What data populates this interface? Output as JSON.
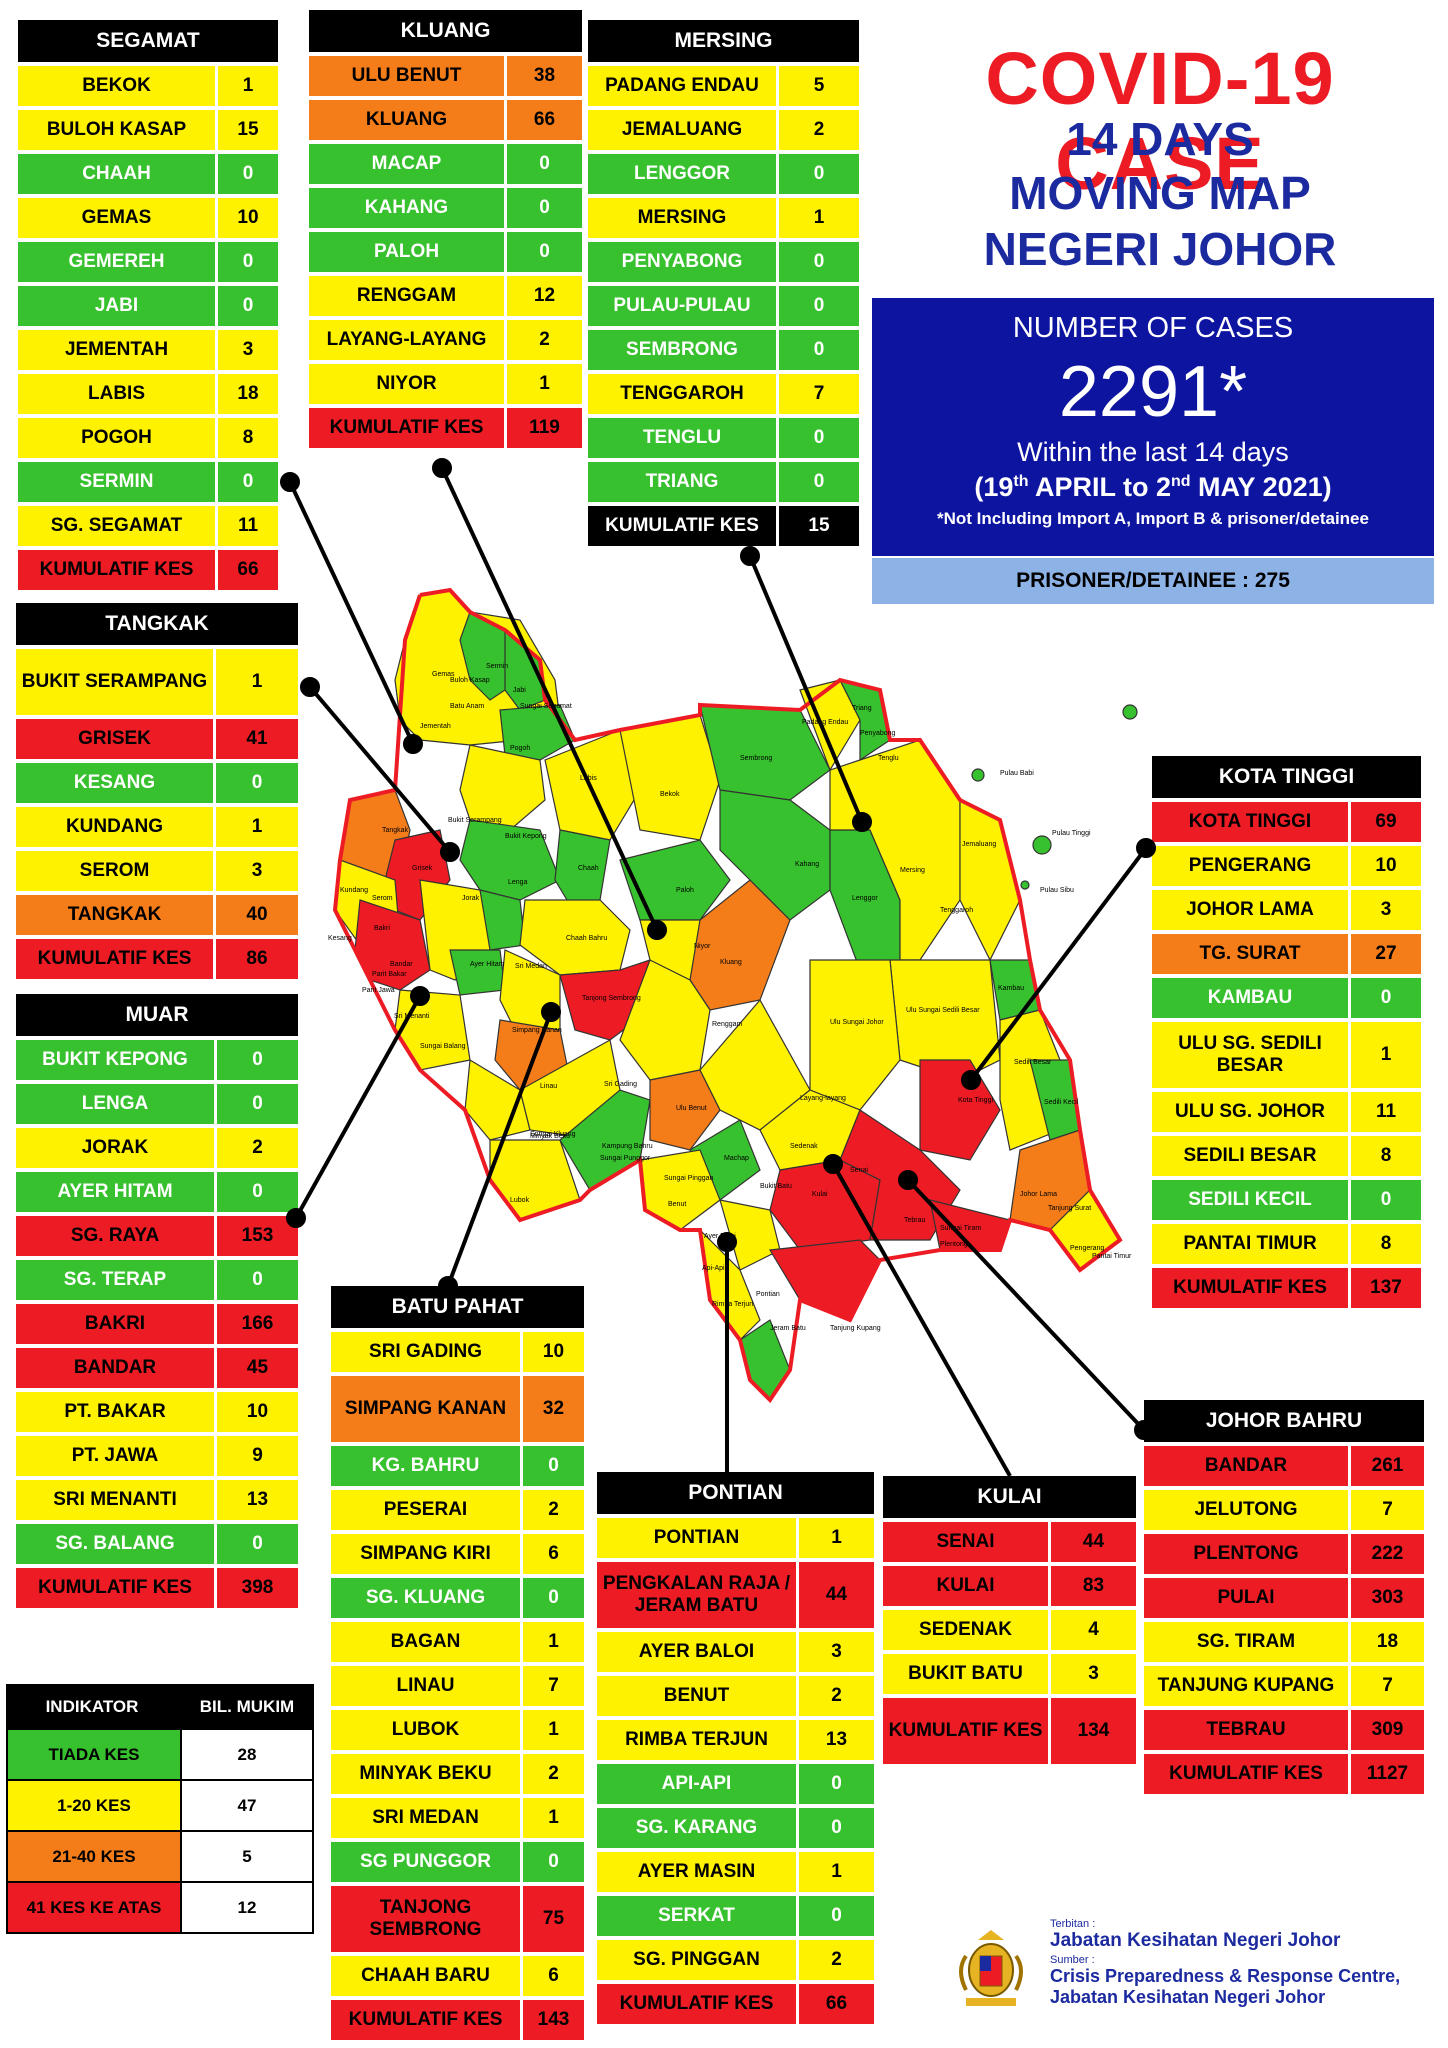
{
  "title": {
    "line1": "COVID-19 CASE",
    "line2": "14 DAYS",
    "line3": "MOVING MAP",
    "line4": "NEGERI JOHOR"
  },
  "summary": {
    "label": "NUMBER OF CASES",
    "total": "2291*",
    "period_line1": "Within the last 14 days",
    "period_open": "(19",
    "sup1": "th",
    "period_mid": " APRIL to 2",
    "sup2": "nd",
    "period_close": " MAY 2021)",
    "note": "*Not Including Import A, Import B & prisoner/detainee",
    "prisoner": "PRISONER/DETAINEE : 275"
  },
  "colors": {
    "green": "#38c12e",
    "yellow": "#fff200",
    "orange": "#f47d1a",
    "red": "#ed1c24"
  },
  "districts": {
    "segamat": {
      "name": "SEGAMAT",
      "rows": [
        {
          "n": "BEKOK",
          "v": "1",
          "c": "y"
        },
        {
          "n": "BULOH KASAP",
          "v": "15",
          "c": "y"
        },
        {
          "n": "CHAAH",
          "v": "0",
          "c": "g"
        },
        {
          "n": "GEMAS",
          "v": "10",
          "c": "y"
        },
        {
          "n": "GEMEREH",
          "v": "0",
          "c": "g"
        },
        {
          "n": "JABI",
          "v": "0",
          "c": "g"
        },
        {
          "n": "JEMENTAH",
          "v": "3",
          "c": "y"
        },
        {
          "n": "LABIS",
          "v": "18",
          "c": "y"
        },
        {
          "n": "POGOH",
          "v": "8",
          "c": "y"
        },
        {
          "n": "SERMIN",
          "v": "0",
          "c": "g"
        },
        {
          "n": "SG. SEGAMAT",
          "v": "11",
          "c": "y"
        },
        {
          "n": "KUMULATIF KES",
          "v": "66",
          "c": "r"
        }
      ]
    },
    "kluang": {
      "name": "KLUANG",
      "rows": [
        {
          "n": "ULU BENUT",
          "v": "38",
          "c": "o"
        },
        {
          "n": "KLUANG",
          "v": "66",
          "c": "o"
        },
        {
          "n": "MACAP",
          "v": "0",
          "c": "g"
        },
        {
          "n": "KAHANG",
          "v": "0",
          "c": "g"
        },
        {
          "n": "PALOH",
          "v": "0",
          "c": "g"
        },
        {
          "n": "RENGGAM",
          "v": "12",
          "c": "y"
        },
        {
          "n": "LAYANG-LAYANG",
          "v": "2",
          "c": "y"
        },
        {
          "n": "NIYOR",
          "v": "1",
          "c": "y"
        },
        {
          "n": "KUMULATIF KES",
          "v": "119",
          "c": "r"
        }
      ]
    },
    "mersing": {
      "name": "MERSING",
      "rows": [
        {
          "n": "PADANG ENDAU",
          "v": "5",
          "c": "y"
        },
        {
          "n": "JEMALUANG",
          "v": "2",
          "c": "y"
        },
        {
          "n": "LENGGOR",
          "v": "0",
          "c": "g"
        },
        {
          "n": "MERSING",
          "v": "1",
          "c": "y"
        },
        {
          "n": "PENYABONG",
          "v": "0",
          "c": "g"
        },
        {
          "n": "PULAU-PULAU",
          "v": "0",
          "c": "g"
        },
        {
          "n": "SEMBRONG",
          "v": "0",
          "c": "g"
        },
        {
          "n": "TENGGAROH",
          "v": "7",
          "c": "y"
        },
        {
          "n": "TENGLU",
          "v": "0",
          "c": "g"
        },
        {
          "n": "TRIANG",
          "v": "0",
          "c": "g"
        },
        {
          "n": "KUMULATIF KES",
          "v": "15",
          "c": "k"
        }
      ]
    },
    "tangkak": {
      "name": "TANGKAK",
      "rows": [
        {
          "n": "BUKIT SERAMPANG",
          "v": "1",
          "c": "y",
          "h": 2
        },
        {
          "n": "GRISEK",
          "v": "41",
          "c": "r"
        },
        {
          "n": "KESANG",
          "v": "0",
          "c": "g"
        },
        {
          "n": "KUNDANG",
          "v": "1",
          "c": "y"
        },
        {
          "n": "SEROM",
          "v": "3",
          "c": "y"
        },
        {
          "n": "TANGKAK",
          "v": "40",
          "c": "o"
        },
        {
          "n": "KUMULATIF KES",
          "v": "86",
          "c": "r"
        }
      ]
    },
    "muar": {
      "name": "MUAR",
      "rows": [
        {
          "n": "BUKIT KEPONG",
          "v": "0",
          "c": "g"
        },
        {
          "n": "LENGA",
          "v": "0",
          "c": "g"
        },
        {
          "n": "JORAK",
          "v": "2",
          "c": "y"
        },
        {
          "n": "AYER HITAM",
          "v": "0",
          "c": "g"
        },
        {
          "n": "SG. RAYA",
          "v": "153",
          "c": "r"
        },
        {
          "n": "SG. TERAP",
          "v": "0",
          "c": "g"
        },
        {
          "n": "BAKRI",
          "v": "166",
          "c": "r"
        },
        {
          "n": "BANDAR",
          "v": "45",
          "c": "r"
        },
        {
          "n": "PT. BAKAR",
          "v": "10",
          "c": "y"
        },
        {
          "n": "PT. JAWA",
          "v": "9",
          "c": "y"
        },
        {
          "n": "SRI MENANTI",
          "v": "13",
          "c": "y"
        },
        {
          "n": "SG. BALANG",
          "v": "0",
          "c": "g"
        },
        {
          "n": "KUMULATIF KES",
          "v": "398",
          "c": "r"
        }
      ]
    },
    "batupahat": {
      "name": "BATU PAHAT",
      "rows": [
        {
          "n": "SRI GADING",
          "v": "10",
          "c": "y"
        },
        {
          "n": "SIMPANG KANAN",
          "v": "32",
          "c": "o",
          "h": 2
        },
        {
          "n": "KG. BAHRU",
          "v": "0",
          "c": "g"
        },
        {
          "n": "PESERAI",
          "v": "2",
          "c": "y"
        },
        {
          "n": "SIMPANG KIRI",
          "v": "6",
          "c": "y"
        },
        {
          "n": "SG. KLUANG",
          "v": "0",
          "c": "g"
        },
        {
          "n": "BAGAN",
          "v": "1",
          "c": "y"
        },
        {
          "n": "LINAU",
          "v": "7",
          "c": "y"
        },
        {
          "n": "LUBOK",
          "v": "1",
          "c": "y"
        },
        {
          "n": "MINYAK BEKU",
          "v": "2",
          "c": "y"
        },
        {
          "n": "SRI MEDAN",
          "v": "1",
          "c": "y"
        },
        {
          "n": "SG PUNGGOR",
          "v": "0",
          "c": "g"
        },
        {
          "n": "TANJONG SEMBRONG",
          "v": "75",
          "c": "r",
          "h": 2
        },
        {
          "n": "CHAAH BARU",
          "v": "6",
          "c": "y"
        },
        {
          "n": "KUMULATIF KES",
          "v": "143",
          "c": "r"
        }
      ]
    },
    "pontian": {
      "name": "PONTIAN",
      "rows": [
        {
          "n": "PONTIAN",
          "v": "1",
          "c": "y"
        },
        {
          "n": "PENGKALAN RAJA / JERAM BATU",
          "v": "44",
          "c": "r",
          "h": 2
        },
        {
          "n": "AYER BALOI",
          "v": "3",
          "c": "y"
        },
        {
          "n": "BENUT",
          "v": "2",
          "c": "y"
        },
        {
          "n": "RIMBA TERJUN",
          "v": "13",
          "c": "y"
        },
        {
          "n": "API-API",
          "v": "0",
          "c": "g"
        },
        {
          "n": "SG. KARANG",
          "v": "0",
          "c": "g"
        },
        {
          "n": "AYER MASIN",
          "v": "1",
          "c": "y"
        },
        {
          "n": "SERKAT",
          "v": "0",
          "c": "g"
        },
        {
          "n": "SG. PINGGAN",
          "v": "2",
          "c": "y"
        },
        {
          "n": "KUMULATIF KES",
          "v": "66",
          "c": "r"
        }
      ]
    },
    "kulai": {
      "name": "KULAI",
      "rows": [
        {
          "n": "SENAI",
          "v": "44",
          "c": "r"
        },
        {
          "n": "KULAI",
          "v": "83",
          "c": "r"
        },
        {
          "n": "SEDENAK",
          "v": "4",
          "c": "y"
        },
        {
          "n": "BUKIT BATU",
          "v": "3",
          "c": "y"
        },
        {
          "n": "KUMULATIF KES",
          "v": "134",
          "c": "r",
          "h": 2
        }
      ]
    },
    "kotatinggi": {
      "name": "KOTA TINGGI",
      "rows": [
        {
          "n": "KOTA TINGGI",
          "v": "69",
          "c": "r"
        },
        {
          "n": "PENGERANG",
          "v": "10",
          "c": "y"
        },
        {
          "n": "JOHOR LAMA",
          "v": "3",
          "c": "y"
        },
        {
          "n": "TG. SURAT",
          "v": "27",
          "c": "o"
        },
        {
          "n": "KAMBAU",
          "v": "0",
          "c": "g"
        },
        {
          "n": "ULU SG. SEDILI BESAR",
          "v": "1",
          "c": "y",
          "h": 2
        },
        {
          "n": "ULU  SG. JOHOR",
          "v": "11",
          "c": "y"
        },
        {
          "n": "SEDILI BESAR",
          "v": "8",
          "c": "y"
        },
        {
          "n": "SEDILI KECIL",
          "v": "0",
          "c": "g"
        },
        {
          "n": "PANTAI TIMUR",
          "v": "8",
          "c": "y"
        },
        {
          "n": "KUMULATIF KES",
          "v": "137",
          "c": "r"
        }
      ]
    },
    "johorbahru": {
      "name": "JOHOR BAHRU",
      "rows": [
        {
          "n": "BANDAR",
          "v": "261",
          "c": "r"
        },
        {
          "n": "JELUTONG",
          "v": "7",
          "c": "y"
        },
        {
          "n": "PLENTONG",
          "v": "222",
          "c": "r"
        },
        {
          "n": "PULAI",
          "v": "303",
          "c": "r"
        },
        {
          "n": "SG. TIRAM",
          "v": "18",
          "c": "y"
        },
        {
          "n": "TANJUNG KUPANG",
          "v": "7",
          "c": "y"
        },
        {
          "n": "TEBRAU",
          "v": "309",
          "c": "r"
        },
        {
          "n": "KUMULATIF KES",
          "v": "1127",
          "c": "r"
        }
      ]
    }
  },
  "legend": {
    "col1": "INDIKATOR",
    "col2": "BIL. MUKIM",
    "rows": [
      {
        "label": "TIADA KES",
        "count": "28",
        "c": "g"
      },
      {
        "label": "1-20 KES",
        "count": "47",
        "c": "y"
      },
      {
        "label": "21-40 KES",
        "count": "5",
        "c": "o"
      },
      {
        "label": "41 KES KE ATAS",
        "count": "12",
        "c": "r"
      }
    ]
  },
  "footer": {
    "published_label": "Terbitan :",
    "publisher": "Jabatan Kesihatan Negeri Johor",
    "source_label": "Sumber :",
    "source_line1": "Crisis Preparedness & Response Centre,",
    "source_line2": "Jabatan Kesihatan Negeri Johor"
  },
  "map_labels": [
    "Gemas",
    "Buloh Kasap",
    "Sermin",
    "Jabi",
    "Batu Anam",
    "Jementah",
    "Sungai Segamat",
    "Pogoh",
    "Labis",
    "Bekok",
    "Chaah",
    "Bukit Kepong",
    "Lenga",
    "Tangkak",
    "Bukit Serampang",
    "Grisek",
    "Kundang",
    "Serom",
    "Kesang",
    "Jorak",
    "Ayer Hitam",
    "Chaah Bahru",
    "Sri Medan",
    "Simpang Kanan",
    "Tanjong Sembrong",
    "Paloh",
    "Niyor",
    "Kluang",
    "Kahang",
    "Renggam",
    "Sembrong",
    "Padang Endau",
    "Triang",
    "Penyabong",
    "Tenglu",
    "Lenggor",
    "Mersing",
    "Jemaluang",
    "Tenggaroh",
    "Pulau Babi",
    "Pulau Tinggi",
    "Pulau Sibu",
    "Kambau",
    "Ulu Sungai Sedili Besar",
    "Ulu Sungai Johor",
    "Sedili Besar",
    "Sedili Kecil",
    "Kota Tinggi",
    "Johor Lama",
    "Tanjung Surat",
    "Pengerang",
    "Pantai Timur",
    "Layang-layang",
    "Sedenak",
    "Kulai",
    "Senai",
    "Tebrau",
    "Sungai Tiram",
    "Plentong",
    "Bukit Batu",
    "Ulu Benut",
    "Machap",
    "Sri Gading",
    "Linau",
    "Sungai Kluang",
    "Minyak Beku",
    "Kampung Bahru",
    "Sungai Punggor",
    "Lubok",
    "Benut",
    "Sungai Pinggan",
    "Ayer Baloi",
    "Pontian",
    "Api-Api",
    "Jeram Batu",
    "Tanjung Kupang",
    "Rimba Terjun",
    "Bakri",
    "Bandar",
    "Parit Bakar",
    "Parit Jawa",
    "Sri Menanti",
    "Sungai Balang"
  ]
}
